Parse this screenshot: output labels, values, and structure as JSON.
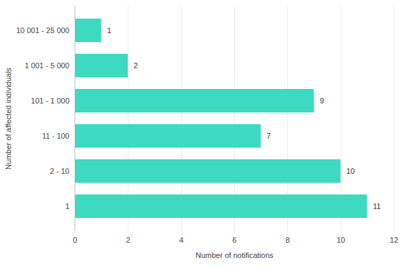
{
  "chart_data": {
    "type": "bar",
    "orientation": "horizontal",
    "x_label": "Number of notifications",
    "y_label": "Number of affected individuals",
    "categories": [
      "10 001 - 25 000",
      "1 001 - 5 000",
      "101 - 1 000",
      "11 - 100",
      "2 - 10",
      "1"
    ],
    "values": [
      1,
      2,
      9,
      7,
      10,
      11
    ],
    "color": "#3dd9c1",
    "xlim": [
      0,
      12
    ],
    "xticks": [
      0,
      2,
      4,
      6,
      8,
      10,
      12
    ],
    "grid": true,
    "data_labels": true
  }
}
